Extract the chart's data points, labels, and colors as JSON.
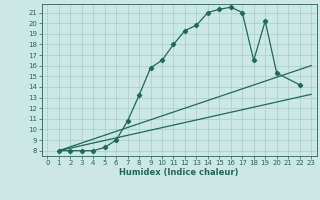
{
  "xlabel": "Humidex (Indice chaleur)",
  "bg_color": "#cce8e4",
  "line_color": "#1a6b5a",
  "grid_color": "#aaccc8",
  "xlim": [
    -0.5,
    23.5
  ],
  "ylim": [
    7.5,
    21.8
  ],
  "xticks": [
    0,
    1,
    2,
    3,
    4,
    5,
    6,
    7,
    8,
    9,
    10,
    11,
    12,
    13,
    14,
    15,
    16,
    17,
    18,
    19,
    20,
    21,
    22,
    23
  ],
  "yticks": [
    8,
    9,
    10,
    11,
    12,
    13,
    14,
    15,
    16,
    17,
    18,
    19,
    20,
    21
  ],
  "line1_x": [
    1,
    2,
    3,
    4,
    5,
    6,
    7,
    8,
    9,
    10,
    11,
    12,
    13,
    14,
    15,
    16,
    17,
    18,
    19,
    20,
    22
  ],
  "line1_y": [
    8,
    8,
    8,
    8,
    8.3,
    9.0,
    10.8,
    13.2,
    15.8,
    16.5,
    18.0,
    19.3,
    19.8,
    21.0,
    21.3,
    21.5,
    21.0,
    16.5,
    20.2,
    15.3,
    14.2
  ],
  "line2_x": [
    1,
    23
  ],
  "line2_y": [
    8,
    13.3
  ],
  "line3_x": [
    1,
    23
  ],
  "line3_y": [
    8,
    16.0
  ],
  "marker": "D",
  "markersize": 2.2,
  "linewidth": 0.9,
  "tick_fontsize": 5.0,
  "xlabel_fontsize": 6.0
}
